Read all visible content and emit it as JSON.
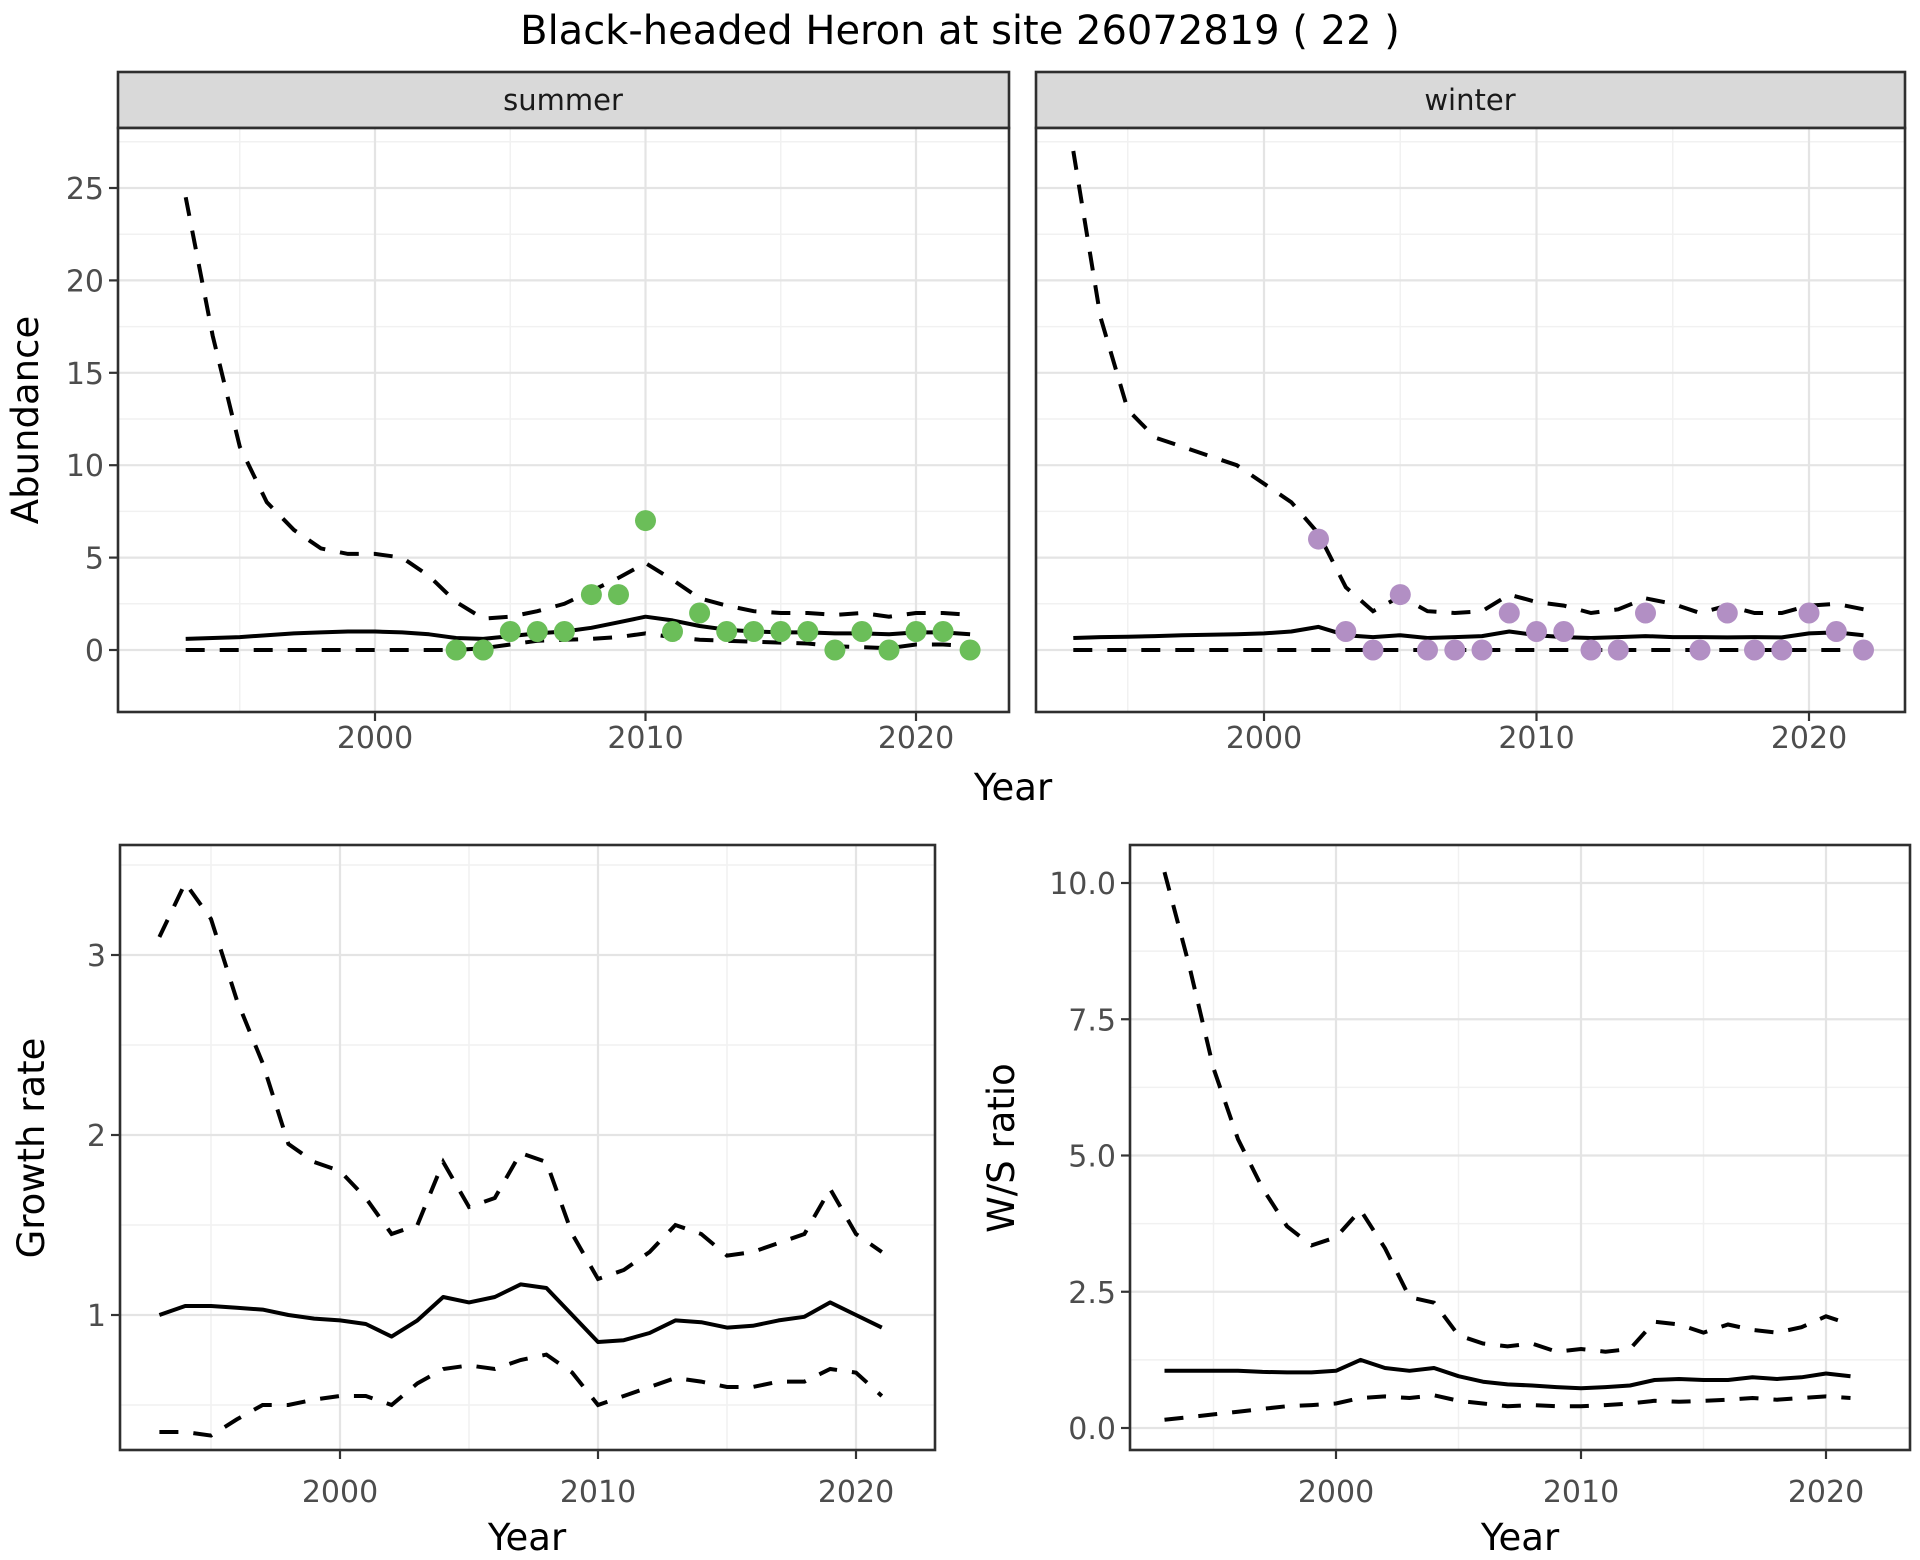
{
  "title": "Black-headed Heron at site 26072819 ( 22 )",
  "axis_labels": {
    "x": "Year",
    "abundance": "Abundance",
    "growth": "Growth rate",
    "ws": "W/S ratio"
  },
  "facets": {
    "summer": "summer",
    "winter": "winter"
  },
  "colors": {
    "summer_point": "#6BBE59",
    "winter_point": "#B28FC4",
    "line": "#000000",
    "grid_major": "#E4E4E4",
    "grid_minor": "#F1F1F1",
    "strip_bg": "#D9D9D9",
    "panel_border": "#2F2F2F",
    "axis_text": "#4D4D4D",
    "tick_mark": "#333333",
    "background": "#FFFFFF"
  },
  "chart_data": {
    "abundance": {
      "type": "line",
      "title": "",
      "xlabel": "Year",
      "ylabel": "Abundance",
      "years": [
        1993,
        1994,
        1995,
        1996,
        1997,
        1998,
        1999,
        2000,
        2001,
        2002,
        2003,
        2004,
        2005,
        2006,
        2007,
        2008,
        2009,
        2010,
        2011,
        2012,
        2013,
        2014,
        2015,
        2016,
        2017,
        2018,
        2019,
        2020,
        2021,
        2022
      ],
      "x_ticks": [
        2000,
        2010,
        2020
      ],
      "x_tick_labels": [
        "2000",
        "2010",
        "2020"
      ],
      "x_minor": [
        1995,
        2005,
        2015
      ],
      "y_ticks": [
        0,
        5,
        10,
        15,
        20,
        25
      ],
      "y_tick_labels": [
        "0",
        "5",
        "10",
        "15",
        "20",
        "25"
      ],
      "y_minor": [
        2.5,
        7.5,
        12.5,
        17.5,
        22.5,
        27.5
      ],
      "ylim": [
        -3.35,
        28.2
      ],
      "xlim": [
        1990.5,
        2023.6
      ],
      "grid": true,
      "legend": "none",
      "facets": [
        {
          "name": "summer",
          "point_color": "#6BBE59",
          "upper_ci": [
            24.5,
            17.0,
            11.0,
            8.0,
            6.5,
            5.5,
            5.2,
            5.2,
            5.0,
            4.0,
            2.6,
            1.7,
            1.8,
            2.1,
            2.5,
            3.2,
            3.9,
            4.7,
            3.8,
            2.8,
            2.4,
            2.1,
            2.0,
            2.0,
            1.9,
            2.0,
            1.8,
            2.0,
            2.0,
            1.9
          ],
          "median": [
            0.6,
            0.65,
            0.7,
            0.8,
            0.9,
            0.95,
            1.0,
            1.0,
            0.95,
            0.85,
            0.65,
            0.6,
            0.75,
            0.9,
            1.0,
            1.2,
            1.5,
            1.8,
            1.6,
            1.3,
            1.1,
            1.0,
            0.95,
            0.95,
            0.9,
            0.9,
            0.85,
            0.95,
            0.95,
            0.85
          ],
          "lower_ci": [
            0,
            0,
            0,
            0,
            0,
            0,
            0,
            0,
            0,
            0,
            0,
            0.1,
            0.3,
            0.5,
            0.55,
            0.6,
            0.7,
            0.9,
            0.7,
            0.55,
            0.5,
            0.45,
            0.4,
            0.35,
            0.2,
            0.15,
            0.1,
            0.3,
            0.3,
            0.2
          ],
          "points": {
            "years": [
              2003,
              2004,
              2005,
              2006,
              2007,
              2008,
              2009,
              2010,
              2011,
              2012,
              2013,
              2014,
              2015,
              2016,
              2017,
              2018,
              2019,
              2020,
              2021,
              2022
            ],
            "values": [
              0,
              0,
              1,
              1,
              1,
              3,
              3,
              7,
              1,
              2,
              1,
              1,
              1,
              1,
              0,
              1,
              0,
              1,
              1,
              0
            ]
          }
        },
        {
          "name": "winter",
          "point_color": "#B28FC4",
          "upper_ci": [
            27.0,
            18.0,
            13.0,
            11.5,
            11.0,
            10.5,
            10.0,
            9.0,
            8.0,
            6.3,
            3.4,
            2.1,
            2.9,
            2.1,
            2.0,
            2.1,
            3.0,
            2.6,
            2.4,
            2.0,
            2.2,
            2.8,
            2.5,
            2.0,
            2.4,
            2.0,
            2.0,
            2.4,
            2.5,
            2.2
          ],
          "median": [
            0.65,
            0.7,
            0.72,
            0.75,
            0.8,
            0.82,
            0.85,
            0.9,
            1.0,
            1.25,
            0.8,
            0.7,
            0.8,
            0.65,
            0.7,
            0.75,
            1.0,
            0.8,
            0.7,
            0.65,
            0.7,
            0.75,
            0.7,
            0.7,
            0.68,
            0.7,
            0.68,
            0.9,
            0.95,
            0.8
          ],
          "lower_ci": [
            0,
            0,
            0,
            0,
            0,
            0,
            0,
            0,
            0,
            0,
            0,
            0,
            0,
            0,
            0,
            0,
            0,
            0,
            0,
            0,
            0,
            0,
            0,
            0,
            0,
            0,
            0,
            0,
            0,
            0
          ],
          "points": {
            "years": [
              2002,
              2003,
              2004,
              2005,
              2006,
              2007,
              2008,
              2009,
              2010,
              2011,
              2012,
              2013,
              2014,
              2016,
              2017,
              2018,
              2019,
              2020,
              2021,
              2022
            ],
            "values": [
              6,
              1,
              0,
              3,
              0,
              0,
              0,
              2,
              1,
              1,
              0,
              0,
              2,
              0,
              2,
              0,
              0,
              2,
              1,
              0
            ]
          }
        }
      ]
    },
    "growth_rate": {
      "type": "line",
      "title": "",
      "xlabel": "Year",
      "ylabel": "Growth rate",
      "years": [
        1993,
        1994,
        1995,
        1996,
        1997,
        1998,
        1999,
        2000,
        2001,
        2002,
        2003,
        2004,
        2005,
        2006,
        2007,
        2008,
        2009,
        2010,
        2011,
        2012,
        2013,
        2014,
        2015,
        2016,
        2017,
        2018,
        2019,
        2020,
        2021
      ],
      "x_ticks": [
        2000,
        2010,
        2020
      ],
      "x_tick_labels": [
        "2000",
        "2010",
        "2020"
      ],
      "x_minor": [
        1995,
        2005,
        2015
      ],
      "y_ticks": [
        1,
        2,
        3
      ],
      "y_tick_labels": [
        "1",
        "2",
        "3"
      ],
      "y_minor": [
        0.5,
        1.5,
        2.5,
        3.5
      ],
      "ylim": [
        0.25,
        3.61
      ],
      "xlim": [
        1991.5,
        2023.1
      ],
      "grid": true,
      "legend": "none",
      "upper_ci": [
        3.1,
        3.4,
        3.2,
        2.75,
        2.4,
        1.95,
        1.85,
        1.8,
        1.65,
        1.45,
        1.5,
        1.85,
        1.6,
        1.65,
        1.9,
        1.85,
        1.45,
        1.2,
        1.25,
        1.35,
        1.5,
        1.45,
        1.33,
        1.35,
        1.4,
        1.45,
        1.7,
        1.45,
        1.35
      ],
      "median": [
        1.0,
        1.05,
        1.05,
        1.04,
        1.03,
        1.0,
        0.98,
        0.97,
        0.95,
        0.88,
        0.97,
        1.1,
        1.07,
        1.1,
        1.17,
        1.15,
        1.0,
        0.85,
        0.86,
        0.9,
        0.97,
        0.96,
        0.93,
        0.94,
        0.97,
        0.99,
        1.07,
        1.0,
        0.93
      ],
      "lower_ci": [
        0.35,
        0.35,
        0.33,
        0.42,
        0.5,
        0.5,
        0.53,
        0.55,
        0.55,
        0.5,
        0.62,
        0.7,
        0.72,
        0.7,
        0.75,
        0.78,
        0.68,
        0.5,
        0.55,
        0.6,
        0.65,
        0.63,
        0.6,
        0.6,
        0.63,
        0.63,
        0.7,
        0.68,
        0.55
      ]
    },
    "ws_ratio": {
      "type": "line",
      "title": "",
      "xlabel": "Year",
      "ylabel": "W/S ratio",
      "years": [
        1993,
        1994,
        1995,
        1996,
        1997,
        1998,
        1999,
        2000,
        2001,
        2002,
        2003,
        2004,
        2005,
        2006,
        2007,
        2008,
        2009,
        2010,
        2011,
        2012,
        2013,
        2014,
        2015,
        2016,
        2017,
        2018,
        2019,
        2020,
        2021
      ],
      "x_ticks": [
        2000,
        2010,
        2020
      ],
      "x_tick_labels": [
        "2000",
        "2010",
        "2020"
      ],
      "x_minor": [
        1995,
        2005,
        2015
      ],
      "y_ticks": [
        0,
        2.5,
        5,
        7.5,
        10
      ],
      "y_tick_labels": [
        "0.0",
        "2.5",
        "5.0",
        "7.5",
        "10.0"
      ],
      "y_minor": [
        1.25,
        3.75,
        6.25,
        8.75
      ],
      "ylim": [
        -0.4,
        10.7
      ],
      "xlim": [
        1991.8,
        2023.7
      ],
      "grid": true,
      "legend": "none",
      "upper_ci": [
        10.2,
        8.5,
        6.6,
        5.3,
        4.4,
        3.7,
        3.35,
        3.5,
        4.0,
        3.3,
        2.4,
        2.3,
        1.7,
        1.55,
        1.5,
        1.55,
        1.4,
        1.45,
        1.4,
        1.45,
        1.95,
        1.9,
        1.75,
        1.9,
        1.8,
        1.75,
        1.85,
        2.05,
        1.9
      ],
      "median": [
        1.05,
        1.05,
        1.05,
        1.05,
        1.03,
        1.02,
        1.02,
        1.05,
        1.25,
        1.1,
        1.05,
        1.1,
        0.95,
        0.85,
        0.8,
        0.78,
        0.75,
        0.73,
        0.75,
        0.78,
        0.88,
        0.9,
        0.88,
        0.88,
        0.93,
        0.9,
        0.93,
        1.0,
        0.95
      ],
      "lower_ci": [
        0.15,
        0.2,
        0.25,
        0.3,
        0.35,
        0.4,
        0.42,
        0.45,
        0.55,
        0.58,
        0.55,
        0.6,
        0.5,
        0.45,
        0.4,
        0.42,
        0.4,
        0.4,
        0.42,
        0.45,
        0.5,
        0.48,
        0.5,
        0.52,
        0.55,
        0.52,
        0.55,
        0.58,
        0.55
      ]
    }
  }
}
